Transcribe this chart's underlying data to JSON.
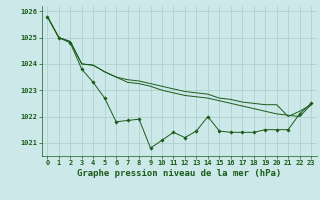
{
  "bg_color": "#cce8e8",
  "grid_color": "#aacccc",
  "line_color": "#1a5c1a",
  "marker_color": "#1a5c1a",
  "title": "Graphe pression niveau de la mer (hPa)",
  "ylim": [
    1020.5,
    1026.2
  ],
  "xlim": [
    -0.5,
    23.5
  ],
  "yticks": [
    1021,
    1022,
    1023,
    1024,
    1025,
    1026
  ],
  "xticks": [
    0,
    1,
    2,
    3,
    4,
    5,
    6,
    7,
    8,
    9,
    10,
    11,
    12,
    13,
    14,
    15,
    16,
    17,
    18,
    19,
    20,
    21,
    22,
    23
  ],
  "series1": [
    1025.8,
    1025.0,
    1024.8,
    1023.8,
    1023.3,
    1022.7,
    1021.8,
    1021.85,
    1021.9,
    1020.8,
    1021.1,
    1021.4,
    1021.2,
    1021.45,
    1022.0,
    1021.45,
    1021.4,
    1021.4,
    1021.4,
    1021.5,
    1021.5,
    1021.5,
    1022.1,
    1022.5
  ],
  "series2": [
    1025.8,
    1025.0,
    1024.85,
    1024.0,
    1023.95,
    1023.7,
    1023.5,
    1023.3,
    1023.25,
    1023.15,
    1023.0,
    1022.9,
    1022.8,
    1022.75,
    1022.7,
    1022.6,
    1022.5,
    1022.4,
    1022.3,
    1022.2,
    1022.1,
    1022.05,
    1022.0,
    1022.45
  ],
  "series3": [
    1025.8,
    1025.0,
    1024.85,
    1024.0,
    1023.95,
    1023.7,
    1023.5,
    1023.4,
    1023.35,
    1023.25,
    1023.15,
    1023.05,
    1022.95,
    1022.9,
    1022.85,
    1022.7,
    1022.65,
    1022.55,
    1022.5,
    1022.45,
    1022.45,
    1022.0,
    1022.2,
    1022.45
  ],
  "title_fontsize": 6.5,
  "tick_fontsize": 5.0
}
